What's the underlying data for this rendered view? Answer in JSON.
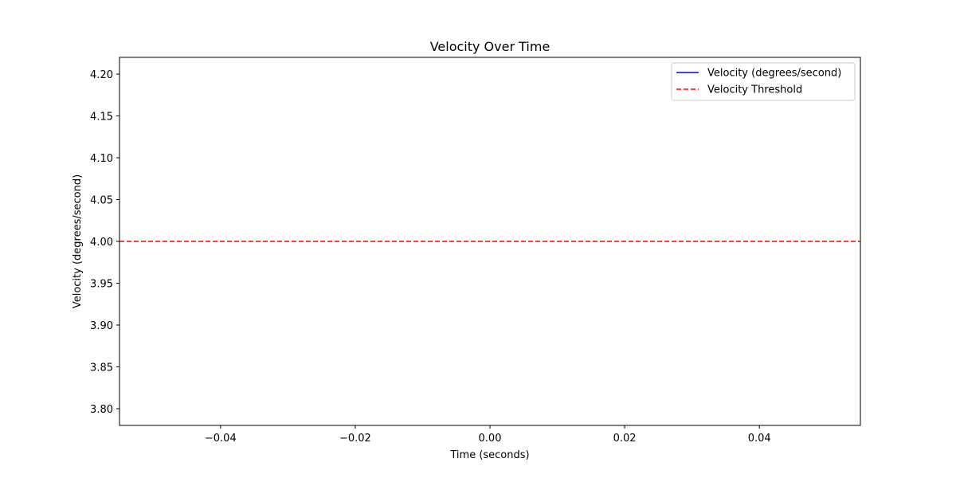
{
  "chart_data": {
    "type": "line",
    "title": "Velocity Over Time",
    "xlabel": "Time (seconds)",
    "ylabel": "Velocity (degrees/second)",
    "xlim": [
      -0.055,
      0.055
    ],
    "ylim": [
      3.78,
      4.22
    ],
    "x_ticks": [
      -0.04,
      -0.02,
      0.0,
      0.02,
      0.04
    ],
    "x_tick_labels": [
      "−0.04",
      "−0.02",
      "0.00",
      "0.02",
      "0.04"
    ],
    "y_ticks": [
      3.8,
      3.85,
      3.9,
      3.95,
      4.0,
      4.05,
      4.1,
      4.15,
      4.2
    ],
    "y_tick_labels": [
      "3.80",
      "3.85",
      "3.90",
      "3.95",
      "4.00",
      "4.05",
      "4.10",
      "4.15",
      "4.20"
    ],
    "grid": false,
    "legend_position": "top-right",
    "series": [
      {
        "name": "Velocity (degrees/second)",
        "style": "solid",
        "color": "#0000ff",
        "x": [],
        "y": []
      }
    ],
    "reference_lines": [
      {
        "name": "Velocity Threshold",
        "orientation": "horizontal",
        "y": 4.0,
        "style": "dashed",
        "color": "#ff0000"
      }
    ]
  }
}
